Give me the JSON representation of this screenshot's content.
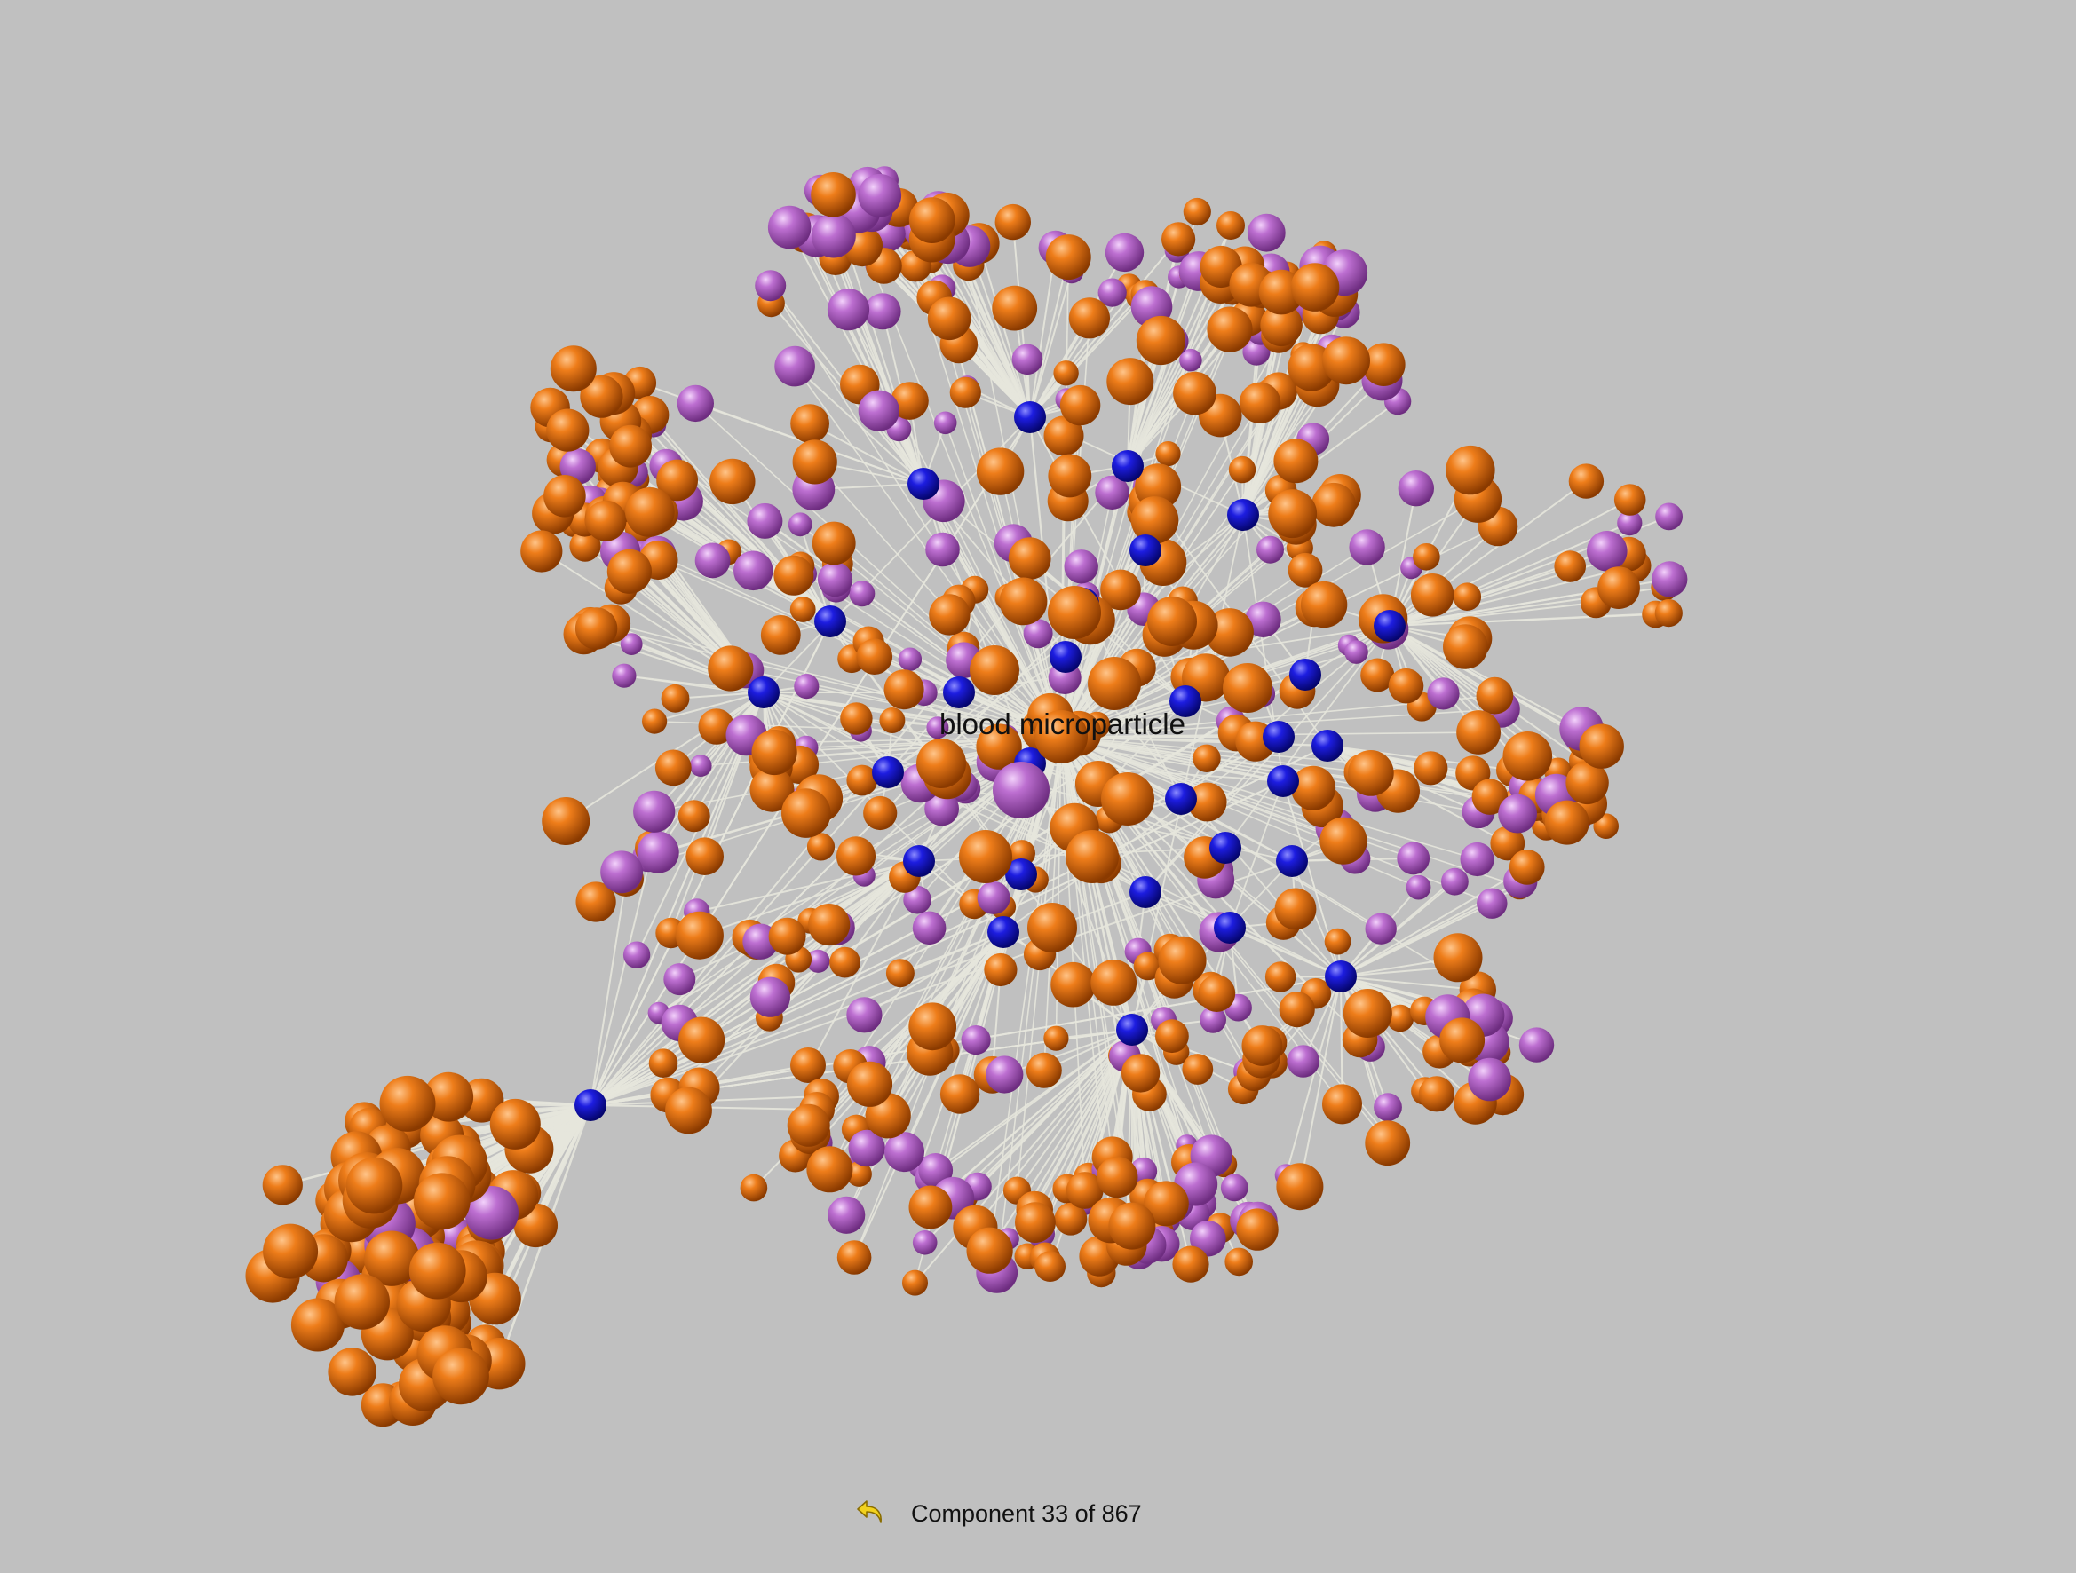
{
  "graph": {
    "focus_label": "blood microparticle",
    "node_colors": {
      "protein": "#e8700f",
      "term": "#b865cc",
      "hub": "#1a1ad9"
    },
    "edge_color": "#e6e6dc",
    "background": "#c0c0c0"
  },
  "footer": {
    "back_icon": "undo-arrow-icon",
    "component_text": "Component 33 of 867"
  }
}
